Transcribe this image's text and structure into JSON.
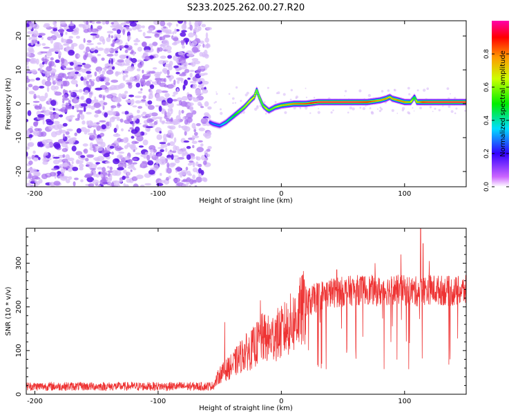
{
  "figure_title": "S233.2025.262.00.27.R20",
  "chart_data": [
    {
      "type": "heatmap",
      "title": "S233.2025.262.00.27.R20",
      "xlabel": "Height of straight line (km)",
      "ylabel": "Frequency (Hz)",
      "xlim": [
        -207,
        150
      ],
      "ylim": [
        -24.5,
        24.5
      ],
      "xticks": [
        -200,
        -100,
        0,
        100
      ],
      "yticks": [
        -20,
        -10,
        0,
        10,
        20
      ],
      "noise_region_x": [
        -207,
        -58
      ],
      "ridge": {
        "x": [
          -58,
          -55,
          -50,
          -45,
          -40,
          -35,
          -30,
          -25,
          -22,
          -20,
          -18,
          -15,
          -12,
          -10,
          -5,
          0,
          10,
          20,
          30,
          40,
          50,
          60,
          70,
          80,
          85,
          88,
          90,
          95,
          100,
          105,
          108,
          110,
          115,
          120,
          130,
          140,
          150
        ],
        "y": [
          -5.5,
          -6,
          -6.5,
          -5.5,
          -4,
          -2.5,
          -1,
          1,
          2,
          4,
          2,
          -0.5,
          -1.5,
          -2,
          -1,
          -0.5,
          0,
          0,
          0.5,
          0.5,
          0.5,
          0.5,
          0.5,
          1,
          1.5,
          2,
          1.5,
          1,
          0.5,
          0.5,
          2,
          0.5,
          0.5,
          0.5,
          0.5,
          0.5,
          0.5
        ],
        "amplitude": [
          0.25,
          0.3,
          0.3,
          0.4,
          0.45,
          0.55,
          0.6,
          0.65,
          0.7,
          0.6,
          0.6,
          0.55,
          0.65,
          0.55,
          0.6,
          0.7,
          0.8,
          0.85,
          0.95,
          0.95,
          0.95,
          0.95,
          0.9,
          0.75,
          0.8,
          0.7,
          0.75,
          0.8,
          0.8,
          0.7,
          0.45,
          0.7,
          0.9,
          0.95,
          0.95,
          0.95,
          0.95
        ]
      },
      "colorbar": {
        "label": "Normalized spectral amplitude",
        "range": [
          0.0,
          1.0
        ],
        "ticks": [
          0.0,
          0.2,
          0.4,
          0.6,
          0.8
        ],
        "tick_labels": [
          "0.0",
          "0.2",
          "0.4",
          "0.6",
          "0.8"
        ]
      }
    },
    {
      "type": "line",
      "xlabel": "Height of straight line (km)",
      "ylabel": "SNR (10 * v/v)",
      "xlim": [
        -207,
        150
      ],
      "ylim": [
        0,
        380
      ],
      "xticks": [
        -200,
        -100,
        0,
        100
      ],
      "yticks": [
        0,
        100,
        200,
        300
      ],
      "series": [
        {
          "name": "SNR",
          "color": "#ee3333",
          "envelope_x": [
            -207,
            -60,
            -55,
            -50,
            -45,
            -40,
            -35,
            -30,
            -25,
            -20,
            -15,
            -10,
            -5,
            0,
            5,
            10,
            15,
            20,
            25,
            30,
            40,
            50,
            60,
            70,
            80,
            90,
            100,
            110,
            120,
            130,
            140,
            150
          ],
          "envelope_mean": [
            18,
            18,
            20,
            45,
            55,
            65,
            80,
            95,
            100,
            115,
            130,
            125,
            135,
            140,
            155,
            165,
            185,
            205,
            215,
            225,
            232,
            235,
            238,
            240,
            235,
            240,
            238,
            235,
            240,
            238,
            235,
            238
          ],
          "spikes": [
            [
              -46,
              165
            ],
            [
              -17,
              215
            ],
            [
              -5,
              170
            ],
            [
              113,
              380
            ],
            [
              115,
              345
            ],
            [
              120,
              305
            ],
            [
              97,
              320
            ],
            [
              76,
              300
            ],
            [
              45,
              285
            ]
          ]
        }
      ]
    }
  ]
}
